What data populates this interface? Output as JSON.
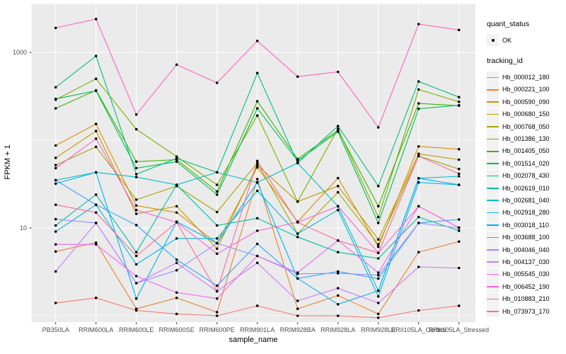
{
  "figure": {
    "background": "#FFFFFF",
    "panel_background": "#EBEBEB",
    "grid_color": "#FFFFFF",
    "tick_color": "#333333",
    "tick_label_color": "#4D4D4D",
    "point_color": "#000000"
  },
  "chart_data": {
    "type": "line",
    "title": "",
    "xlabel": "sample_name",
    "ylabel": "FPKM + 1",
    "y_scale": "log10",
    "y_tick_labels": [
      "1000",
      "10"
    ],
    "y_tick_values": [
      1000,
      10
    ],
    "y_minor_values": [
      100,
      1
    ],
    "ylim": [
      0.85,
      3300
    ],
    "grid": "on",
    "legend_position": "right",
    "marker": "black point on every data vertex",
    "categories": [
      "PB350LA",
      "RRIM600LA",
      "RRIM600LE",
      "RRIM600SE",
      "RRIM600PE",
      "RRIM901LA",
      "RRIM928BA",
      "RRIM928LA",
      "RRIM928LE",
      "RRII105LA_Control",
      "RRII105LA_Stressed"
    ],
    "legend": {
      "quant_status": {
        "title": "quant_status",
        "items": [
          {
            "label": "OK",
            "marker": "point-icon"
          }
        ]
      },
      "tracking_id": {
        "title": "tracking_id"
      }
    },
    "series": [
      {
        "name": "Hb_000012_180",
        "color": "#F8766D",
        "values": [
          1.4,
          1.6,
          1.15,
          1.05,
          1.0,
          1.3,
          1.0,
          1.0,
          0.95,
          1.15,
          1.3
        ]
      },
      {
        "name": "Hb_000221_100",
        "color": "#EA8331",
        "values": [
          5.4,
          6.8,
          1.2,
          1.6,
          1.1,
          36,
          1.2,
          1.7,
          1.05,
          5.3,
          7.0
        ]
      },
      {
        "name": "Hb_000590_090",
        "color": "#DB8E00",
        "values": [
          87,
          153,
          18,
          15,
          6.7,
          49,
          11.8,
          37,
          6.1,
          85,
          79
        ]
      },
      {
        "name": "Hb_000680_150",
        "color": "#C09B00",
        "values": [
          63,
          127,
          14.5,
          17.7,
          5.8,
          52,
          20,
          30,
          7.4,
          70,
          60
        ]
      },
      {
        "name": "Hb_000768_050",
        "color": "#A3A500",
        "values": [
          52,
          84,
          21,
          30,
          15.2,
          55,
          8.6,
          25.5,
          6.5,
          66,
          47
        ]
      },
      {
        "name": "Hb_001386_130",
        "color": "#7CAE00",
        "values": [
          289,
          500,
          133,
          65,
          31,
          191,
          20,
          135,
          13.3,
          378,
          274
        ]
      },
      {
        "name": "Hb_001405_050",
        "color": "#39B600",
        "values": [
          230,
          370,
          57,
          60,
          26,
          277,
          61,
          130,
          17.7,
          262,
          247
        ]
      },
      {
        "name": "Hb_001514_020",
        "color": "#00BB4E",
        "values": [
          295,
          365,
          48,
          57,
          24,
          230,
          58,
          125,
          11.4,
          228,
          250
        ]
      },
      {
        "name": "Hb_002078_430",
        "color": "#00BF7D",
        "values": [
          400,
          910,
          41,
          62,
          43,
          581,
          55,
          145,
          30,
          466,
          309
        ]
      },
      {
        "name": "Hb_002619_010",
        "color": "#00C1A3",
        "values": [
          10.7,
          24,
          5.3,
          31,
          10.7,
          12.9,
          7.9,
          5.3,
          4.5,
          13.3,
          9.3
        ]
      },
      {
        "name": "Hb_002681_040",
        "color": "#00BFC4",
        "values": [
          35,
          43,
          38,
          31,
          43,
          33,
          55,
          17.7,
          1.93,
          36.8,
          38.8
        ]
      },
      {
        "name": "Hb_002918_280",
        "color": "#00B9E3",
        "values": [
          9.1,
          18.4,
          3.85,
          7.6,
          7.6,
          26.5,
          8.6,
          16,
          1.66,
          33,
          31
        ]
      },
      {
        "name": "Hb_003018_110",
        "color": "#00B0F6",
        "values": [
          32,
          43,
          1.57,
          11.8,
          6.7,
          33,
          2.66,
          1.35,
          1.93,
          36.8,
          31
        ]
      },
      {
        "name": "Hb_003688_100",
        "color": "#35A2FF",
        "values": [
          35,
          18.4,
          10.8,
          4.35,
          2.2,
          6.6,
          2.66,
          3.2,
          2.65,
          11.4,
          12.5
        ]
      },
      {
        "name": "Hb_004046_040",
        "color": "#9590FF",
        "values": [
          12.6,
          11.4,
          2.35,
          3.3,
          6.7,
          4.8,
          3.0,
          3.05,
          2.9,
          11.4,
          10
        ]
      },
      {
        "name": "Hb_004137_030",
        "color": "#C77CFF",
        "values": [
          3.2,
          11.4,
          2.35,
          4.0,
          1.9,
          4.0,
          1.48,
          2.06,
          1.4,
          3.6,
          3.5
        ]
      },
      {
        "name": "Hb_005545_030",
        "color": "#E76BF3",
        "values": [
          6.5,
          6.5,
          2.83,
          1.84,
          1.57,
          4.8,
          3.1,
          7.2,
          3.1,
          17.7,
          10.1
        ]
      },
      {
        "name": "Hb_006452_190",
        "color": "#FA62DB",
        "values": [
          48,
          104,
          16,
          11.6,
          5.1,
          9.3,
          11.6,
          17.7,
          5.2,
          17.7,
          10.1
        ]
      },
      {
        "name": "Hb_010883_210",
        "color": "#FF62BC",
        "values": [
          1900,
          2400,
          196,
          725,
          450,
          1350,
          530,
          600,
          140,
          2100,
          1800
        ]
      },
      {
        "name": "Hb_073973_170",
        "color": "#FF6A98",
        "values": [
          18.4,
          15,
          4.8,
          11.6,
          1.9,
          58,
          11.6,
          7.2,
          5.2,
          66,
          41.5
        ]
      }
    ]
  }
}
